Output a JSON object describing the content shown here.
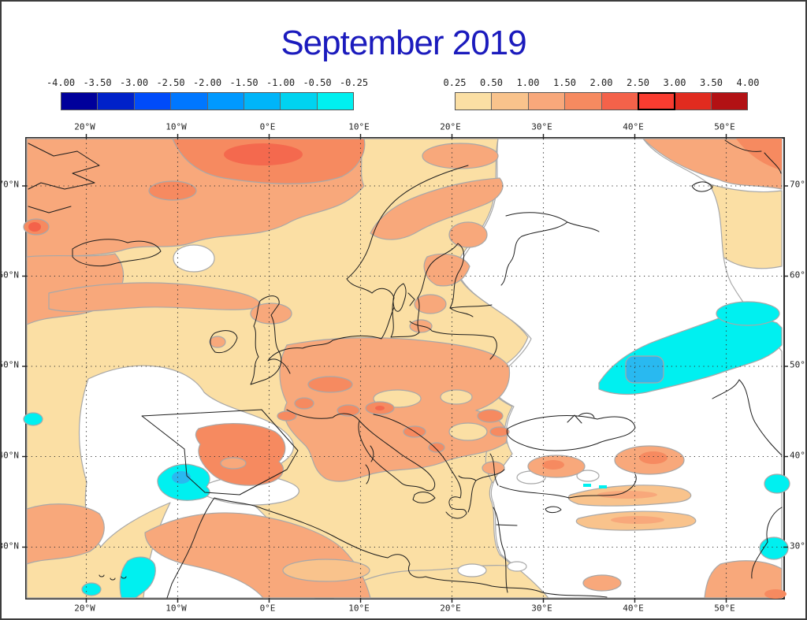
{
  "title": "September 2019",
  "title_color": "#1b1bbd",
  "colorbars": {
    "negative": {
      "ticks": [
        "-4.00",
        "-3.50",
        "-3.00",
        "-2.50",
        "-2.00",
        "-1.50",
        "-1.00",
        "-0.50",
        "-0.25"
      ],
      "colors": [
        "#00009b",
        "#0021c9",
        "#004bfa",
        "#0077ff",
        "#0099ff",
        "#00b5f9",
        "#00d3f0",
        "#00f0f0"
      ],
      "highlight_index": -1
    },
    "positive": {
      "ticks": [
        "0.25",
        "0.50",
        "1.00",
        "1.50",
        "2.00",
        "2.50",
        "3.00",
        "3.50",
        "4.00"
      ],
      "colors": [
        "#fbdfa4",
        "#f9c38c",
        "#f8a87b",
        "#f68a60",
        "#f4624a",
        "#f93c30",
        "#e12b1f",
        "#b21114"
      ],
      "highlight_index": 5
    }
  },
  "map": {
    "x_ticks": [
      "20°W",
      "10°W",
      "0°E",
      "10°E",
      "20°E",
      "30°E",
      "40°E",
      "50°E"
    ],
    "y_ticks": [
      "70°N",
      "60°N",
      "50°N",
      "40°N",
      "30°N"
    ],
    "palette": {
      "warm_0_25_to_0_50": "#fbdfa4",
      "warm_0_50_to_1_00": "#f9c38c",
      "warm_1_00_to_1_50": "#f8a87b",
      "warm_1_50_to_2_00": "#f68a60",
      "warm_2_00_to_2_50": "#f4624a",
      "cool_0_25_to_0_50": "#00f0f0",
      "cool_0_50_to_1_00": "#29b9f0",
      "no_anomaly": "#ffffff",
      "contour_line": "#a8a8a8",
      "coastline": "#1c1c1c"
    }
  }
}
